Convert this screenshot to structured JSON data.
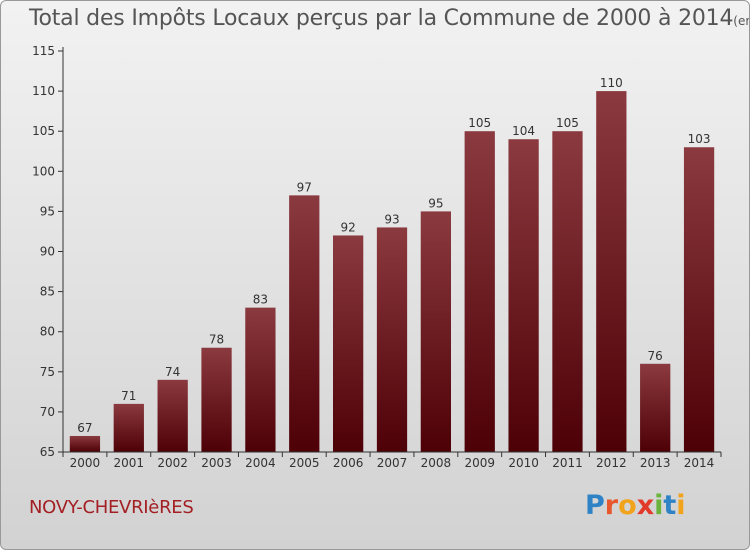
{
  "title": "Total des Impôts Locaux perçus par la Commune de 2000 à 2014",
  "title_unit": "(en milliers d'€)",
  "commune": "NOVY-CHEVRIèRES",
  "logo": {
    "text": "Proxiti",
    "letters": [
      {
        "ch": "P",
        "color": "#2e83c6"
      },
      {
        "ch": "r",
        "color": "#e8572b"
      },
      {
        "ch": "o",
        "color": "#f2a31c"
      },
      {
        "ch": "x",
        "color": "#e23a2a"
      },
      {
        "ch": "i",
        "color": "#6bb33c"
      },
      {
        "ch": "t",
        "color": "#2e83c6"
      },
      {
        "ch": "i",
        "color": "#f2a31c"
      }
    ]
  },
  "colors": {
    "bar_top": "#8b3a3f",
    "bar_bottom": "#4d0006",
    "axis": "#333333",
    "grid": "#c8c8c8",
    "label": "#333333"
  },
  "chart_data": {
    "type": "bar",
    "categories": [
      "2000",
      "2001",
      "2002",
      "2003",
      "2004",
      "2005",
      "2006",
      "2007",
      "2008",
      "2009",
      "2010",
      "2011",
      "2012",
      "2013",
      "2014"
    ],
    "values": [
      67,
      71,
      74,
      78,
      83,
      97,
      92,
      93,
      95,
      105,
      104,
      105,
      110,
      76,
      103
    ],
    "data_labels": [
      "67",
      "71",
      "74",
      "78",
      "83",
      "97",
      "92",
      "93",
      "95",
      "105",
      "104",
      "105",
      "110",
      "76",
      "103"
    ],
    "title": "Total des Impôts Locaux perçus par la Commune de 2000 à 2014",
    "xlabel": "",
    "ylabel": "",
    "ylim": [
      65,
      115
    ],
    "yticks": [
      65,
      70,
      75,
      80,
      85,
      90,
      95,
      100,
      105,
      110,
      115
    ],
    "ytick_labels": [
      "65",
      "70",
      "75",
      "80",
      "85",
      "90",
      "95",
      "100",
      "105",
      "110",
      "115"
    ],
    "grid": false,
    "legend": "none"
  }
}
